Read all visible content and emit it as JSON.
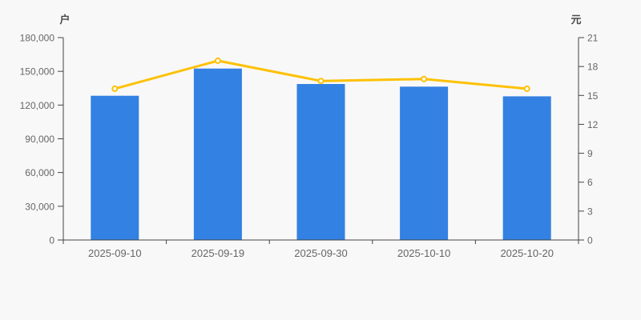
{
  "page": {
    "background": "#f8f8f8"
  },
  "colors": {
    "axis": "#444444",
    "tick_text": "#666666",
    "unit_text": "#4a4a4a",
    "bar": "#3381e3",
    "line": "#fdc104",
    "marker_fill": "#ffffff"
  },
  "chart_data": {
    "type": "combo",
    "categories": [
      "2025-09-10",
      "2025-09-19",
      "2025-09-30",
      "2025-10-10",
      "2025-10-20"
    ],
    "series": [
      {
        "type": "bar",
        "axis": "left",
        "unit": "户",
        "color": "#3381e3",
        "values": [
          128300,
          152500,
          138700,
          136400,
          127800
        ]
      },
      {
        "type": "line",
        "axis": "right",
        "unit": "元",
        "color": "#fdc104",
        "values": [
          15.7,
          18.6,
          16.5,
          16.7,
          15.7
        ]
      }
    ],
    "left_axis": {
      "label": "户",
      "min": 0,
      "max": 180000,
      "tick_step": 30000,
      "ticks": [
        "0",
        "30,000",
        "60,000",
        "90,000",
        "120,000",
        "150,000",
        "180,000"
      ]
    },
    "right_axis": {
      "label": "元",
      "min": 0,
      "max": 21,
      "tick_step": 3,
      "ticks": [
        "0",
        "3",
        "6",
        "9",
        "12",
        "15",
        "18",
        "21"
      ]
    },
    "grid": false,
    "legend": "none"
  }
}
